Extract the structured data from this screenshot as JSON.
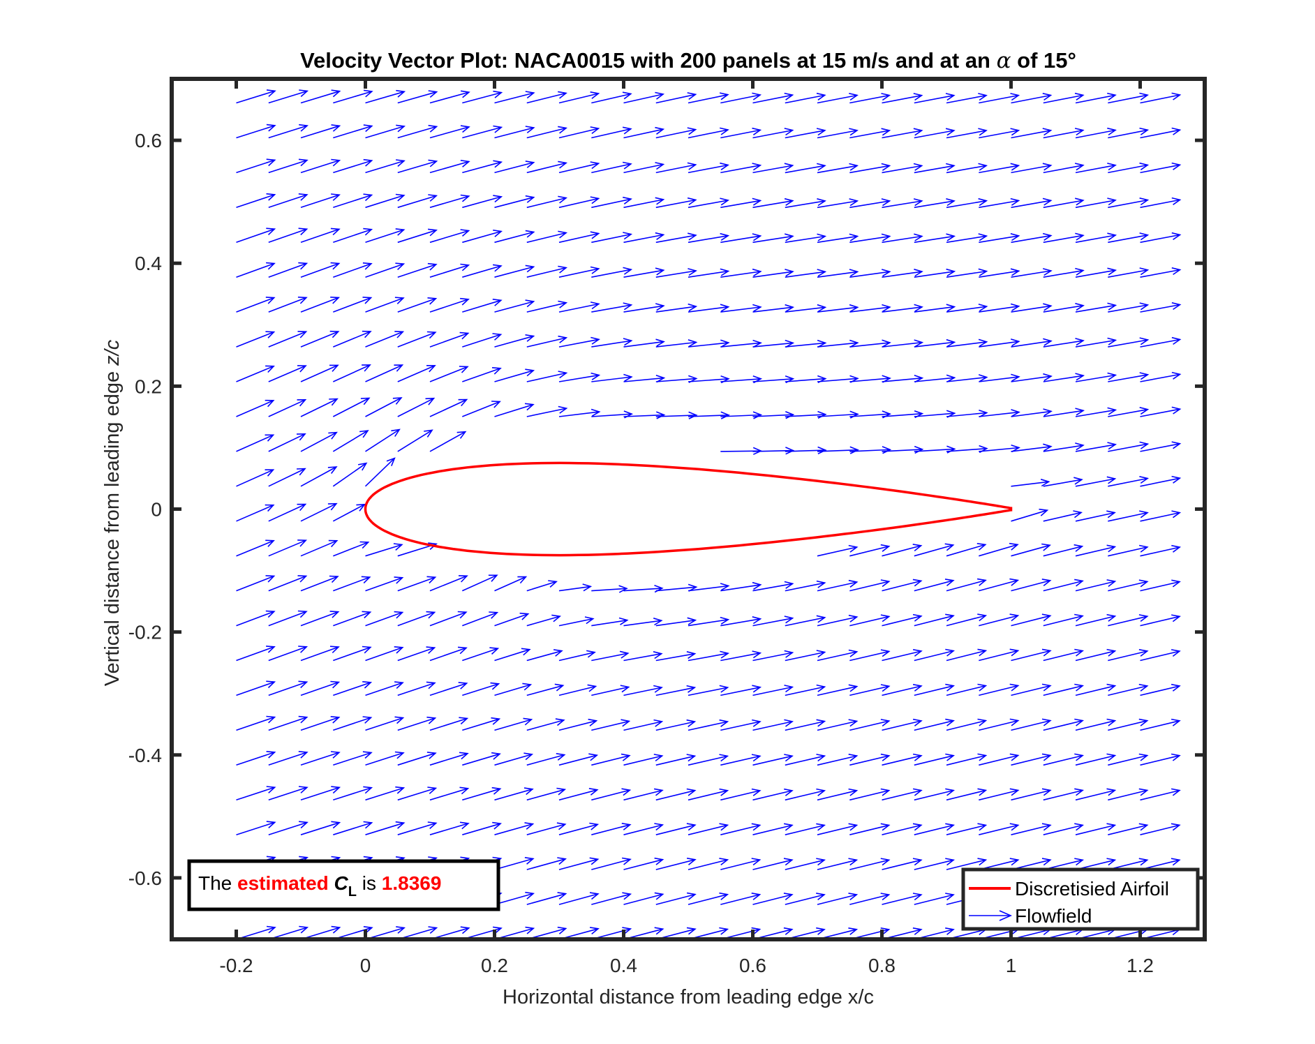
{
  "chart_data": {
    "type": "quiver",
    "title_parts": {
      "prefix": "Velocity Vector Plot: NACA0015 with 200 panels at 15 m/s and at an ",
      "symbol": "α",
      "suffix": " of 15°"
    },
    "xlabel": "Horizontal distance from leading edge x/c",
    "ylabel_parts": {
      "text": "Vertical distance from leading edge  ",
      "italic": "z/c"
    },
    "xlim": [
      -0.3,
      1.3
    ],
    "ylim": [
      -0.7,
      0.7
    ],
    "xticks": [
      -0.2,
      0,
      0.2,
      0.4,
      0.6,
      0.8,
      1,
      1.2
    ],
    "xtick_labels": [
      "-0.2",
      "0",
      "0.2",
      "0.4",
      "0.6",
      "0.8",
      "1",
      "1.2"
    ],
    "yticks": [
      -0.6,
      -0.4,
      -0.2,
      0,
      0.2,
      0.4,
      0.6
    ],
    "ytick_labels": [
      "-0.6",
      "-0.4",
      "-0.2",
      "0",
      "0.2",
      "0.4",
      "0.6"
    ],
    "grid": false,
    "airfoil": {
      "name": "NACA0015",
      "thickness": 0.15,
      "chord": 1,
      "color": "#ff0000"
    },
    "flowfield": {
      "freestream_speed": 15,
      "alpha_deg": 15,
      "x_range": [
        -0.2,
        1.2
      ],
      "x_step": 0.05,
      "z_range": [
        -0.7,
        0.66
      ],
      "z_step": 0.0567,
      "color": "#0000ff"
    },
    "legend": {
      "placement": "bottom-right",
      "entries": [
        {
          "label": "Discretisied Airfoil",
          "color": "#ff0000",
          "kind": "line"
        },
        {
          "label": "Flowfield",
          "color": "#0000ff",
          "kind": "arrow"
        }
      ]
    },
    "annotation": {
      "placement": "bottom-left",
      "parts": {
        "lead": "The ",
        "emph": "estimated",
        "symbol": "C",
        "subscript": "L",
        "mid": " is ",
        "value": "1.8369"
      },
      "highlight_color": "#ff0000"
    }
  }
}
